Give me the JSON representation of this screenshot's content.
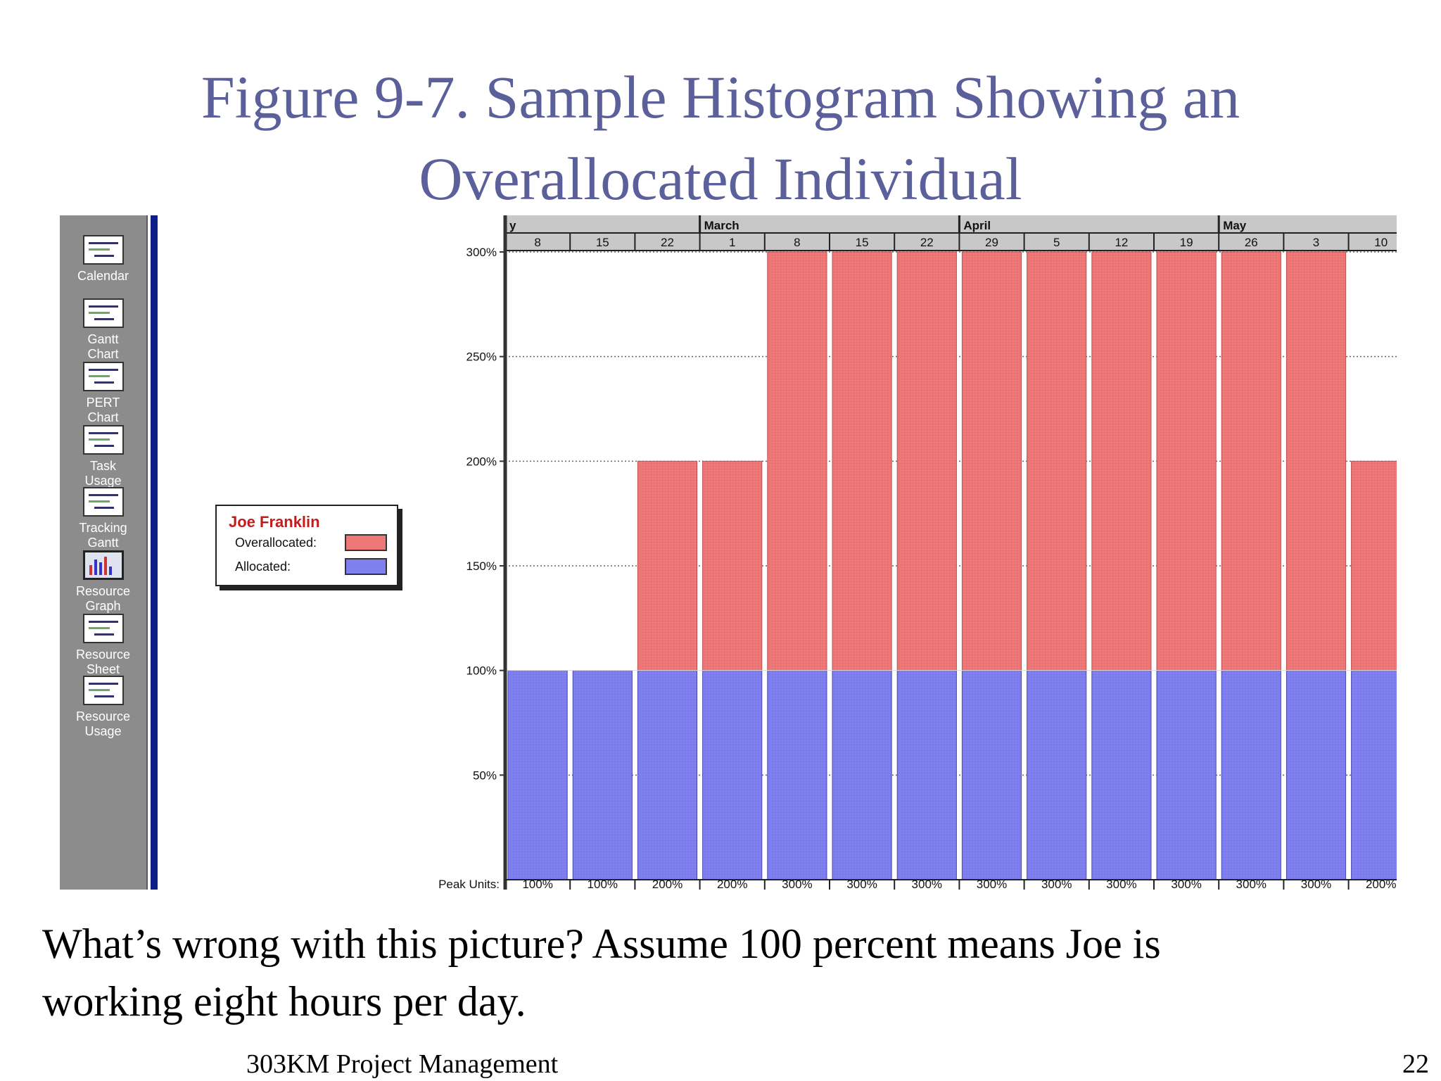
{
  "slide": {
    "title_line1": "Figure 9-7. Sample Histogram Showing an",
    "title_line2": "Overallocated Individual",
    "caption_line1": "What’s wrong with this picture?  Assume 100 percent means Joe is",
    "caption_line2": "working eight hours per day.",
    "footer_course": "303KM Project Management",
    "footer_page": "22"
  },
  "sidebar": {
    "items": [
      {
        "line1": "Calendar",
        "line2": "",
        "icon": "calendar-icon"
      },
      {
        "line1": "Gantt",
        "line2": "Chart",
        "icon": "gantt-chart-icon"
      },
      {
        "line1": "PERT",
        "line2": "Chart",
        "icon": "pert-chart-icon"
      },
      {
        "line1": "Task",
        "line2": "Usage",
        "icon": "task-usage-icon"
      },
      {
        "line1": "Tracking",
        "line2": "Gantt",
        "icon": "tracking-gantt-icon"
      },
      {
        "line1": "Resource",
        "line2": "Graph",
        "icon": "resource-graph-icon"
      },
      {
        "line1": "Resource",
        "line2": "Sheet",
        "icon": "resource-sheet-icon"
      },
      {
        "line1": "Resource",
        "line2": "Usage",
        "icon": "resource-usage-icon"
      }
    ]
  },
  "legend": {
    "name": "Joe Franklin",
    "overallocated_label": "Overallocated:",
    "allocated_label": "Allocated:"
  },
  "colors": {
    "overallocated": "#ee7777",
    "allocated": "#7f7ff0",
    "title": "#5b5f9a",
    "sidebar": "#8c8c8c"
  },
  "chart_data": {
    "type": "bar",
    "stacked": true,
    "months": [
      {
        "label": "y",
        "start_index": 0
      },
      {
        "label": "March",
        "start_index": 3
      },
      {
        "label": "April",
        "start_index": 7
      },
      {
        "label": "May",
        "start_index": 11
      }
    ],
    "categories": [
      "8",
      "15",
      "22",
      "1",
      "8",
      "15",
      "22",
      "29",
      "5",
      "12",
      "19",
      "26",
      "3",
      "10"
    ],
    "series": [
      {
        "name": "Allocated",
        "values": [
          100,
          100,
          100,
          100,
          100,
          100,
          100,
          100,
          100,
          100,
          100,
          100,
          100,
          100
        ]
      },
      {
        "name": "Overallocated",
        "values": [
          0,
          0,
          100,
          100,
          200,
          200,
          200,
          200,
          200,
          200,
          200,
          200,
          200,
          100
        ]
      }
    ],
    "peak_units_label": "Peak Units:",
    "peak_units": [
      "100%",
      "100%",
      "200%",
      "200%",
      "300%",
      "300%",
      "300%",
      "300%",
      "300%",
      "300%",
      "300%",
      "300%",
      "300%",
      "200%"
    ],
    "y_ticks": [
      "50%",
      "100%",
      "150%",
      "200%",
      "250%",
      "300%"
    ],
    "y_tick_values": [
      50,
      100,
      150,
      200,
      250,
      300
    ],
    "ylim": [
      0,
      300
    ],
    "grid": true
  }
}
